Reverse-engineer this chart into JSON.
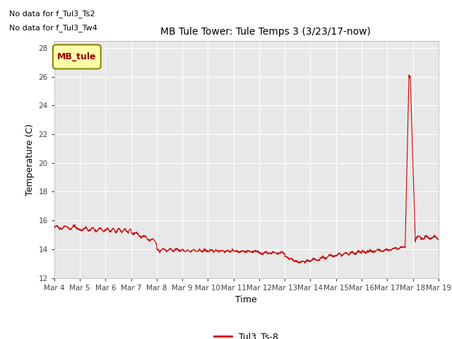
{
  "title": "MB Tule Tower: Tule Temps 3 (3/23/17-now)",
  "xlabel": "Time",
  "ylabel": "Temperature (C)",
  "ylim": [
    12,
    28.5
  ],
  "yticks": [
    12,
    14,
    16,
    18,
    20,
    22,
    24,
    26,
    28
  ],
  "xtick_labels": [
    "Mar 4",
    "Mar 5",
    "Mar 6",
    "Mar 7",
    "Mar 8",
    "Mar 9",
    "Mar 10",
    "Mar 11",
    "Mar 12",
    "Mar 13",
    "Mar 14",
    "Mar 15",
    "Mar 16",
    "Mar 17",
    "Mar 18",
    "Mar 19"
  ],
  "no_data_texts": [
    "No data for f_Tul3_Ts2",
    "No data for f_Tul3_Tw4"
  ],
  "legend_label_box": "MB_tule",
  "legend_label_line": "Tul3_Ts-8",
  "line_color": "#cc0000",
  "box_facecolor": "#ffffaa",
  "box_edgecolor": "#888800",
  "box_text_color": "#990000",
  "background_color": "#e8e8e8",
  "grid_color": "#ffffff",
  "fig_width": 6.4,
  "fig_height": 4.8,
  "dpi": 100
}
